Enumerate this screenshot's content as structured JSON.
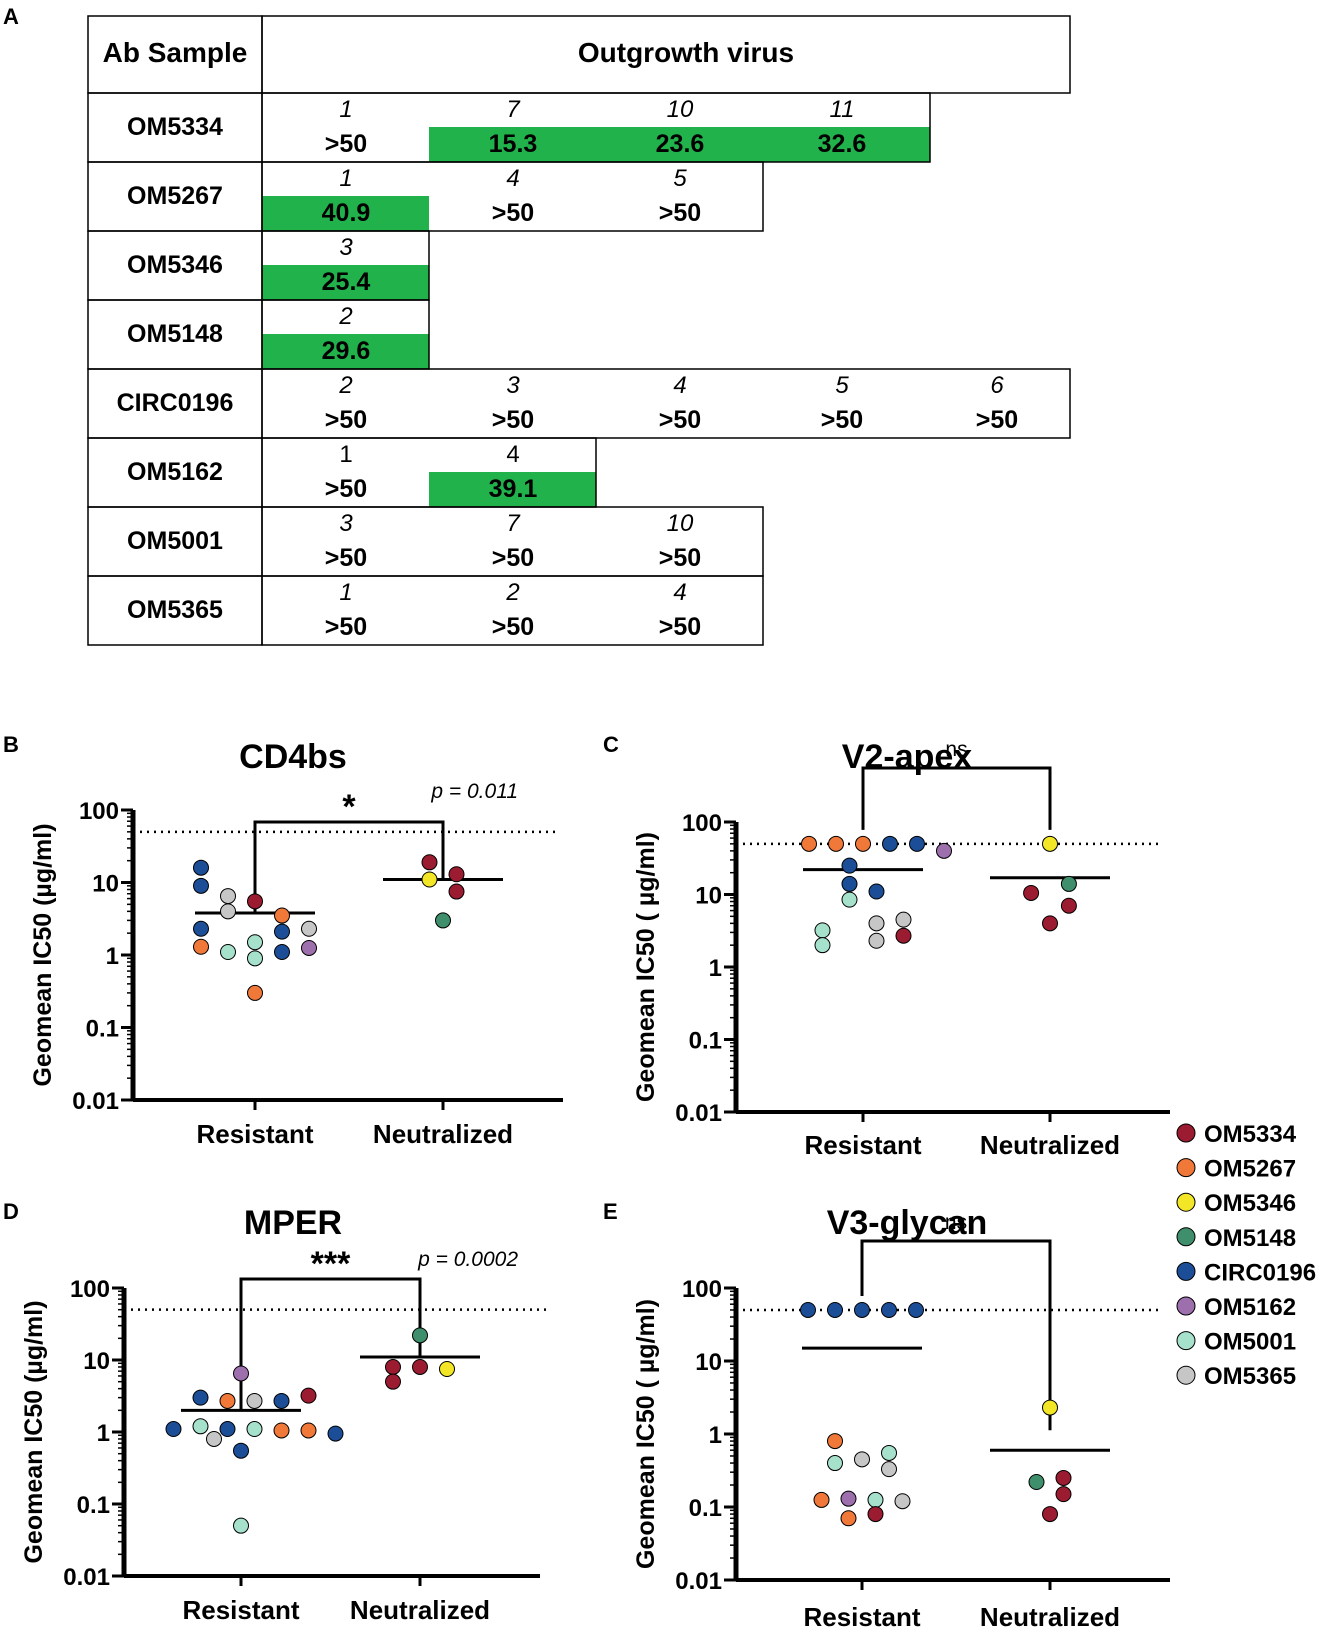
{
  "colors": {
    "OM5334": "#9b1b30",
    "OM5267": "#f07838",
    "OM5346": "#f2e626",
    "OM5148": "#3f8e6c",
    "CIRC0196": "#1b4e96",
    "OM5162": "#9d6fac",
    "OM5001": "#a6e1cc",
    "OM5365": "#c6c6c6",
    "highlight": "#21b24b"
  },
  "panel_a": {
    "label": "A",
    "header_sample": "Ab Sample",
    "header_virus": "Outgrowth virus",
    "rows": [
      {
        "sample": "OM5334",
        "cells": [
          {
            "id": "1",
            "val": ">50",
            "hl": false
          },
          {
            "id": "7",
            "val": "15.3",
            "hl": true
          },
          {
            "id": "10",
            "val": "23.6",
            "hl": true
          },
          {
            "id": "11",
            "val": "32.6",
            "hl": true
          }
        ]
      },
      {
        "sample": "OM5267",
        "cells": [
          {
            "id": "1",
            "val": "40.9",
            "hl": true
          },
          {
            "id": "4",
            "val": ">50",
            "hl": false
          },
          {
            "id": "5",
            "val": ">50",
            "hl": false
          }
        ]
      },
      {
        "sample": "OM5346",
        "cells": [
          {
            "id": "3",
            "val": "25.4",
            "hl": true
          }
        ]
      },
      {
        "sample": "OM5148",
        "cells": [
          {
            "id": "2",
            "val": "29.6",
            "hl": true
          }
        ]
      },
      {
        "sample": "CIRC0196",
        "cells": [
          {
            "id": "2",
            "val": ">50",
            "hl": false
          },
          {
            "id": "3",
            "val": ">50",
            "hl": false
          },
          {
            "id": "4",
            "val": ">50",
            "hl": false
          },
          {
            "id": "5",
            "val": ">50",
            "hl": false
          },
          {
            "id": "6",
            "val": ">50",
            "hl": false
          }
        ]
      },
      {
        "sample": "OM5162",
        "cells": [
          {
            "id": "1",
            "val": ">50",
            "hl": false,
            "upright": true
          },
          {
            "id": "4",
            "val": "39.1",
            "hl": true,
            "upright": true
          }
        ]
      },
      {
        "sample": "OM5001",
        "cells": [
          {
            "id": "3",
            "val": ">50",
            "hl": false
          },
          {
            "id": "7",
            "val": ">50",
            "hl": false
          },
          {
            "id": "10",
            "val": ">50",
            "hl": false
          }
        ]
      },
      {
        "sample": "OM5365",
        "cells": [
          {
            "id": "1",
            "val": ">50",
            "hl": false
          },
          {
            "id": "2",
            "val": ">50",
            "hl": false
          },
          {
            "id": "4",
            "val": ">50",
            "hl": false
          }
        ]
      }
    ]
  },
  "legend": [
    "OM5334",
    "OM5267",
    "OM5346",
    "OM5148",
    "CIRC0196",
    "OM5162",
    "OM5001",
    "OM5365"
  ],
  "chart_data": [
    {
      "panel": "B",
      "type": "scatter",
      "title": "CD4bs",
      "ylabel": "Geomean IC50 (µg/ml)",
      "yscale": "log",
      "ylim": [
        0.01,
        100
      ],
      "yticks": [
        "0.01",
        "0.1",
        "1",
        "10",
        "100"
      ],
      "categories": [
        "Resistant",
        "Neutralized"
      ],
      "threshold": 50,
      "significance": "*",
      "pvalue": "p = 0.011",
      "geomean": [
        3.8,
        11
      ],
      "points": [
        {
          "cat": 0,
          "dx": -2,
          "y": 16,
          "s": "CIRC0196"
        },
        {
          "cat": 0,
          "dx": -2,
          "y": 9,
          "s": "CIRC0196"
        },
        {
          "cat": 0,
          "dx": -1,
          "y": 6.5,
          "s": "OM5365"
        },
        {
          "cat": 0,
          "dx": 0,
          "y": 5.5,
          "s": "OM5334"
        },
        {
          "cat": 0,
          "dx": -1,
          "y": 4,
          "s": "OM5365"
        },
        {
          "cat": 0,
          "dx": 1,
          "y": 3.5,
          "s": "OM5267"
        },
        {
          "cat": 0,
          "dx": -2,
          "y": 2.3,
          "s": "CIRC0196"
        },
        {
          "cat": 0,
          "dx": 1,
          "y": 2.1,
          "s": "CIRC0196"
        },
        {
          "cat": 0,
          "dx": 2,
          "y": 2.3,
          "s": "OM5365"
        },
        {
          "cat": 0,
          "dx": 0,
          "y": 1.5,
          "s": "OM5001"
        },
        {
          "cat": 0,
          "dx": -2,
          "y": 1.3,
          "s": "OM5267"
        },
        {
          "cat": 0,
          "dx": -1,
          "y": 1.1,
          "s": "OM5001"
        },
        {
          "cat": 0,
          "dx": 1,
          "y": 1.1,
          "s": "CIRC0196"
        },
        {
          "cat": 0,
          "dx": 2,
          "y": 1.25,
          "s": "OM5162"
        },
        {
          "cat": 0,
          "dx": 0,
          "y": 0.9,
          "s": "OM5001"
        },
        {
          "cat": 0,
          "dx": 0,
          "y": 0.3,
          "s": "OM5267"
        },
        {
          "cat": 1,
          "dx": -0.5,
          "y": 19,
          "s": "OM5334"
        },
        {
          "cat": 1,
          "dx": 0.5,
          "y": 13,
          "s": "OM5334"
        },
        {
          "cat": 1,
          "dx": -0.5,
          "y": 11,
          "s": "OM5346"
        },
        {
          "cat": 1,
          "dx": 0.5,
          "y": 7.5,
          "s": "OM5334"
        },
        {
          "cat": 1,
          "dx": 0,
          "y": 3,
          "s": "OM5148"
        }
      ]
    },
    {
      "panel": "C",
      "type": "scatter",
      "title": "V2-apex",
      "ylabel": "Geomean IC50 ( µg/ml)",
      "yscale": "log",
      "ylim": [
        0.01,
        100
      ],
      "yticks": [
        "0.01",
        "0.1",
        "1",
        "10",
        "100"
      ],
      "categories": [
        "Resistant",
        "Neutralized"
      ],
      "threshold": 50,
      "significance": "ns",
      "pvalue": "",
      "geomean": [
        22,
        17
      ],
      "points": [
        {
          "cat": 0,
          "dx": -2,
          "y": 50,
          "s": "OM5267"
        },
        {
          "cat": 0,
          "dx": -1,
          "y": 50,
          "s": "OM5267"
        },
        {
          "cat": 0,
          "dx": 0,
          "y": 50,
          "s": "OM5267"
        },
        {
          "cat": 0,
          "dx": 1,
          "y": 50,
          "s": "CIRC0196"
        },
        {
          "cat": 0,
          "dx": 2,
          "y": 50,
          "s": "CIRC0196"
        },
        {
          "cat": 0,
          "dx": 3,
          "y": 40,
          "s": "OM5162"
        },
        {
          "cat": 0,
          "dx": -0.5,
          "y": 25,
          "s": "CIRC0196"
        },
        {
          "cat": 0,
          "dx": -0.5,
          "y": 14,
          "s": "CIRC0196"
        },
        {
          "cat": 0,
          "dx": 0.5,
          "y": 11,
          "s": "CIRC0196"
        },
        {
          "cat": 0,
          "dx": -0.5,
          "y": 8.5,
          "s": "OM5001"
        },
        {
          "cat": 0,
          "dx": -1.5,
          "y": 3.2,
          "s": "OM5001"
        },
        {
          "cat": 0,
          "dx": -1.5,
          "y": 2,
          "s": "OM5001"
        },
        {
          "cat": 0,
          "dx": 0.5,
          "y": 4,
          "s": "OM5365"
        },
        {
          "cat": 0,
          "dx": 1.5,
          "y": 4.5,
          "s": "OM5365"
        },
        {
          "cat": 0,
          "dx": 0.5,
          "y": 2.3,
          "s": "OM5365"
        },
        {
          "cat": 0,
          "dx": 1.5,
          "y": 2.7,
          "s": "OM5334"
        },
        {
          "cat": 1,
          "dx": 0,
          "y": 50,
          "s": "OM5346"
        },
        {
          "cat": 1,
          "dx": 0.7,
          "y": 14,
          "s": "OM5148"
        },
        {
          "cat": 1,
          "dx": -0.7,
          "y": 10.5,
          "s": "OM5334"
        },
        {
          "cat": 1,
          "dx": 0.7,
          "y": 7,
          "s": "OM5334"
        },
        {
          "cat": 1,
          "dx": 0,
          "y": 4,
          "s": "OM5334"
        }
      ]
    },
    {
      "panel": "D",
      "type": "scatter",
      "title": "MPER",
      "ylabel": "Geomean IC50 (µg/ml)",
      "yscale": "log",
      "ylim": [
        0.01,
        100
      ],
      "yticks": [
        "0.01",
        "0.1",
        "1",
        "10",
        "100"
      ],
      "categories": [
        "Resistant",
        "Neutralized"
      ],
      "threshold": 50,
      "significance": "***",
      "pvalue": "p = 0.0002",
      "geomean": [
        2,
        11
      ],
      "points": [
        {
          "cat": 0,
          "dx": 0,
          "y": 6.5,
          "s": "OM5162"
        },
        {
          "cat": 0,
          "dx": -1.5,
          "y": 3,
          "s": "CIRC0196"
        },
        {
          "cat": 0,
          "dx": -0.5,
          "y": 2.7,
          "s": "OM5267"
        },
        {
          "cat": 0,
          "dx": 0.5,
          "y": 2.7,
          "s": "OM5365"
        },
        {
          "cat": 0,
          "dx": 1.5,
          "y": 2.7,
          "s": "CIRC0196"
        },
        {
          "cat": 0,
          "dx": 2.5,
          "y": 3.2,
          "s": "OM5334"
        },
        {
          "cat": 0,
          "dx": -2.5,
          "y": 1.1,
          "s": "CIRC0196"
        },
        {
          "cat": 0,
          "dx": -1.5,
          "y": 1.2,
          "s": "OM5001"
        },
        {
          "cat": 0,
          "dx": -0.5,
          "y": 1.1,
          "s": "CIRC0196"
        },
        {
          "cat": 0,
          "dx": 0.5,
          "y": 1.1,
          "s": "OM5001"
        },
        {
          "cat": 0,
          "dx": 1.5,
          "y": 1.05,
          "s": "OM5267"
        },
        {
          "cat": 0,
          "dx": 2.5,
          "y": 1.05,
          "s": "OM5267"
        },
        {
          "cat": 0,
          "dx": 3.5,
          "y": 0.95,
          "s": "CIRC0196"
        },
        {
          "cat": 0,
          "dx": -1,
          "y": 0.8,
          "s": "OM5365"
        },
        {
          "cat": 0,
          "dx": 0,
          "y": 0.55,
          "s": "CIRC0196"
        },
        {
          "cat": 0,
          "dx": 0,
          "y": 0.05,
          "s": "OM5001"
        },
        {
          "cat": 1,
          "dx": 0,
          "y": 22,
          "s": "OM5148"
        },
        {
          "cat": 1,
          "dx": -1,
          "y": 8,
          "s": "OM5334"
        },
        {
          "cat": 1,
          "dx": 0,
          "y": 8,
          "s": "OM5334"
        },
        {
          "cat": 1,
          "dx": 1,
          "y": 7.5,
          "s": "OM5346"
        },
        {
          "cat": 1,
          "dx": -1,
          "y": 5,
          "s": "OM5334"
        }
      ]
    },
    {
      "panel": "E",
      "type": "scatter",
      "title": "V3-glycan",
      "ylabel": "Geomean IC50 ( µg/ml)",
      "yscale": "log",
      "ylim": [
        0.01,
        100
      ],
      "yticks": [
        "0.01",
        "0.1",
        "1",
        "10",
        "100"
      ],
      "categories": [
        "Resistant",
        "Neutralized"
      ],
      "threshold": 50,
      "significance": "ns",
      "pvalue": "",
      "geomean": [
        15,
        0.6
      ],
      "points": [
        {
          "cat": 0,
          "dx": -2,
          "y": 50,
          "s": "CIRC0196"
        },
        {
          "cat": 0,
          "dx": -1,
          "y": 50,
          "s": "CIRC0196"
        },
        {
          "cat": 0,
          "dx": 0,
          "y": 50,
          "s": "CIRC0196"
        },
        {
          "cat": 0,
          "dx": 1,
          "y": 50,
          "s": "CIRC0196"
        },
        {
          "cat": 0,
          "dx": 2,
          "y": 50,
          "s": "CIRC0196"
        },
        {
          "cat": 0,
          "dx": -1,
          "y": 0.8,
          "s": "OM5267"
        },
        {
          "cat": 0,
          "dx": 1,
          "y": 0.55,
          "s": "OM5001"
        },
        {
          "cat": 0,
          "dx": 0,
          "y": 0.45,
          "s": "OM5365"
        },
        {
          "cat": 0,
          "dx": -1,
          "y": 0.4,
          "s": "OM5001"
        },
        {
          "cat": 0,
          "dx": 1,
          "y": 0.33,
          "s": "OM5365"
        },
        {
          "cat": 0,
          "dx": -1.5,
          "y": 0.125,
          "s": "OM5267"
        },
        {
          "cat": 0,
          "dx": -0.5,
          "y": 0.13,
          "s": "OM5162"
        },
        {
          "cat": 0,
          "dx": 0.5,
          "y": 0.125,
          "s": "OM5001"
        },
        {
          "cat": 0,
          "dx": 1.5,
          "y": 0.12,
          "s": "OM5365"
        },
        {
          "cat": 0,
          "dx": -0.5,
          "y": 0.07,
          "s": "OM5267"
        },
        {
          "cat": 0,
          "dx": 0.5,
          "y": 0.08,
          "s": "OM5334"
        },
        {
          "cat": 1,
          "dx": 0,
          "y": 2.3,
          "s": "OM5346"
        },
        {
          "cat": 1,
          "dx": -0.5,
          "y": 0.22,
          "s": "OM5148"
        },
        {
          "cat": 1,
          "dx": 0.5,
          "y": 0.25,
          "s": "OM5334"
        },
        {
          "cat": 1,
          "dx": 0.5,
          "y": 0.15,
          "s": "OM5334"
        },
        {
          "cat": 1,
          "dx": 0,
          "y": 0.08,
          "s": "OM5334"
        }
      ]
    }
  ]
}
